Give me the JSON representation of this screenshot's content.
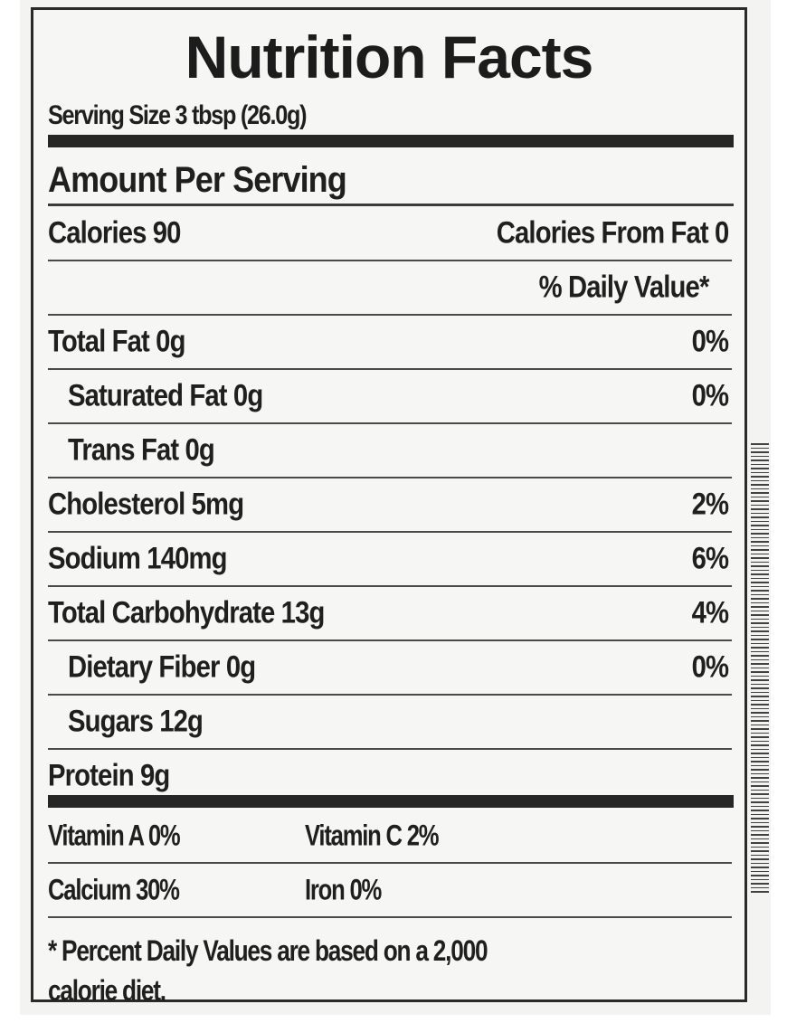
{
  "header": {
    "title": "Nutrition Facts",
    "serving_size": "Serving Size 3 tbsp (26.0g)"
  },
  "amount_per_serving": "Amount Per Serving",
  "calories": {
    "label": "Calories 90",
    "from_fat": "Calories From Fat 0"
  },
  "daily_value_header": "% Daily Value*",
  "nutrients": [
    {
      "label": "Total Fat  0g",
      "dv": "0%"
    },
    {
      "label": "Saturated Fat  0g",
      "dv": "0%"
    },
    {
      "label": "Trans Fat  0g",
      "dv": ""
    },
    {
      "label": "Cholesterol  5mg",
      "dv": "2%"
    },
    {
      "label": "Sodium  140mg",
      "dv": "6%"
    },
    {
      "label": "Total Carbohydrate  13g",
      "dv": "4%"
    },
    {
      "label": "Dietary Fiber  0g",
      "dv": "0%"
    },
    {
      "label": "Sugars  12g",
      "dv": ""
    },
    {
      "label": "Protein  9g",
      "dv": ""
    }
  ],
  "vitamins": {
    "vitamin_a": "Vitamin A 0%",
    "vitamin_c": "Vitamin C 2%",
    "calcium": "Calcium 30%",
    "iron": "Iron 0%"
  },
  "footnote": {
    "line1": "* Percent Daily Values are based on a 2,000",
    "line2": "calorie diet."
  }
}
